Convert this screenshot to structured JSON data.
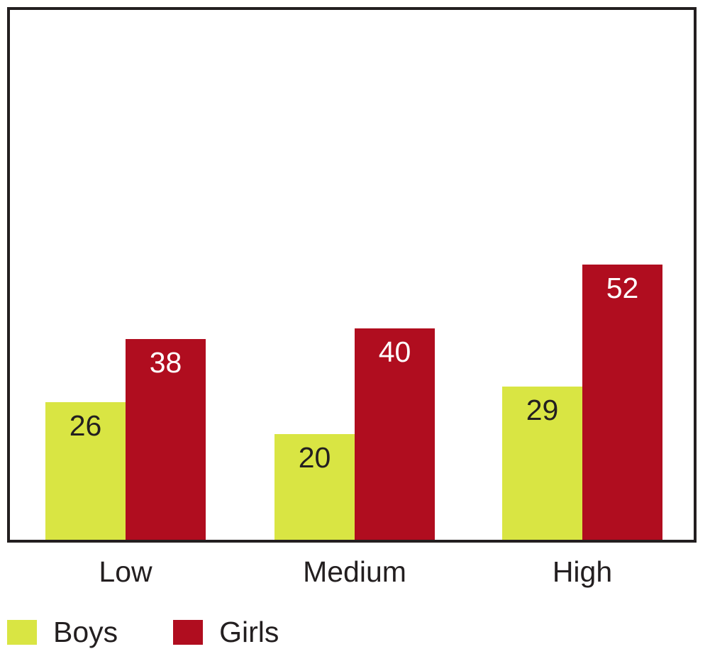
{
  "chart_data": {
    "type": "bar",
    "title": "",
    "xlabel": "",
    "ylabel": "",
    "categories": [
      "Low",
      "Medium",
      "High"
    ],
    "series": [
      {
        "name": "Boys",
        "color": "#d9e543",
        "label_color": "#231f20",
        "values": [
          26,
          20,
          29
        ]
      },
      {
        "name": "Girls",
        "color": "#b00d1f",
        "label_color": "#ffffff",
        "values": [
          38,
          40,
          52
        ]
      }
    ],
    "value_labels_position": "inside-top",
    "ylim": [
      0,
      100
    ],
    "grid": false,
    "y_axis_visible": false,
    "legend_position": "bottom-left",
    "frame_color": "#231f20",
    "background_color": "#ffffff"
  }
}
